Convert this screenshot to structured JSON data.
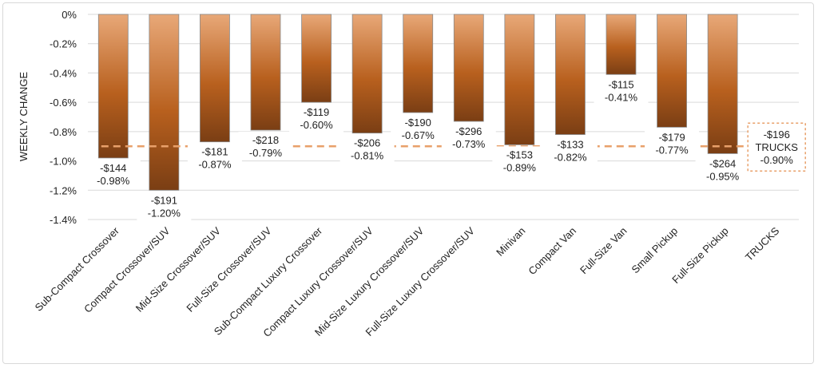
{
  "chart_data": {
    "type": "bar",
    "ylabel": "WEEKLY CHANGE",
    "ylim": [
      -1.4,
      0
    ],
    "yticks": [
      "0%",
      "-0.2%",
      "-0.4%",
      "-0.6%",
      "-0.8%",
      "-1.0%",
      "-1.2%",
      "-1.4%"
    ],
    "ytick_values": [
      0,
      -0.2,
      -0.4,
      -0.6,
      -0.8,
      -1.0,
      -1.2,
      -1.4
    ],
    "grid": true,
    "categories": [
      "Sub-Compact Crossover",
      "Compact Crossover/SUV",
      "Mid-Size Crossover/SUV",
      "Full-Size Crossover/SUV",
      "Sub-Compact Luxury Crossover",
      "Compact Luxury Crossover/SUV",
      "Mid-Size Luxury Crossover/SUV",
      "Full-Size Luxury Crossover/SUV",
      "Minivan",
      "Compact Van",
      "Full-Size Van",
      "Small Pickup",
      "Full-Size Pickup",
      "TRUCKS"
    ],
    "values": [
      -0.98,
      -1.2,
      -0.87,
      -0.79,
      -0.6,
      -0.81,
      -0.67,
      -0.73,
      -0.89,
      -0.82,
      -0.41,
      -0.77,
      -0.95,
      null
    ],
    "dollar_labels": [
      "-$144",
      "-$191",
      "-$181",
      "-$218",
      "-$119",
      "-$206",
      "-$190",
      "-$296",
      "-$153",
      "-$133",
      "-$115",
      "-$179",
      "-$264"
    ],
    "pct_labels": [
      "-0.98%",
      "-1.20%",
      "-0.87%",
      "-0.79%",
      "-0.60%",
      "-0.81%",
      "-0.67%",
      "-0.73%",
      "-0.89%",
      "-0.82%",
      "-0.41%",
      "-0.77%",
      "-0.95%"
    ],
    "reference_line": {
      "value": -0.9,
      "dollar_label": "-$196",
      "name": "TRUCKS",
      "pct_label": "-0.90%",
      "color": "#e8a06a"
    },
    "bar_gradient": [
      "#e8a878",
      "#b8601e",
      "#7a3e14"
    ]
  }
}
